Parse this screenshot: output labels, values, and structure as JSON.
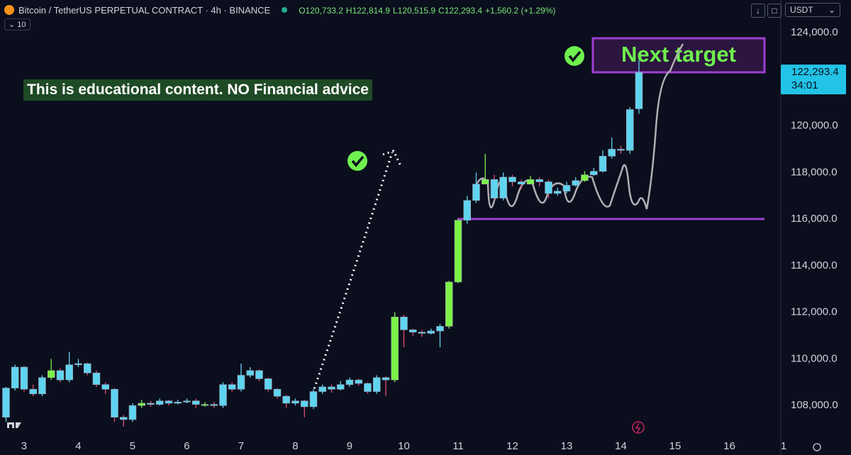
{
  "chart_data": {
    "type": "candlestick",
    "title": "Bitcoin / TetherUS PERPETUAL CONTRACT · 4h · BINANCE",
    "legend_values": [
      "O120,733.2",
      "H122,814.9",
      "L120,515.9",
      "C122,293.4",
      "+1,560.2 (+1.29%)"
    ],
    "indicator_badge": "10",
    "currency": "USDT",
    "annotations": [
      "This is educational content. NO Financial advice",
      "Next target"
    ],
    "last_price": {
      "value": 122293.4,
      "label": "122,293.4"
    },
    "countdown": "34:01",
    "grid": false,
    "xlim": [
      2.556,
      17
    ],
    "ylim": [
      106700,
      125400
    ],
    "xticks": [
      3,
      4,
      5,
      6,
      7,
      8,
      9,
      10,
      11,
      12,
      13,
      14,
      15,
      16,
      {
        "value": 17,
        "label": "1"
      }
    ],
    "yticks": [
      {
        "value": 108000,
        "label": "108,000.0"
      },
      {
        "value": 110000,
        "label": "110,000.0"
      },
      {
        "value": 112000,
        "label": "112,000.0"
      },
      {
        "value": 114000,
        "label": "114,000.0"
      },
      {
        "value": 116000,
        "label": "116,000.0"
      },
      {
        "value": 118000,
        "label": "118,000.0"
      },
      {
        "value": 120000,
        "label": "120,000.0"
      },
      {
        "value": 124000,
        "label": "124,000.0"
      }
    ],
    "x": [
      2.667,
      2.833,
      3,
      3.167,
      3.333,
      3.5,
      3.667,
      3.833,
      4,
      4.167,
      4.333,
      4.5,
      4.667,
      4.833,
      5,
      5.167,
      5.333,
      5.5,
      5.667,
      5.833,
      6,
      6.167,
      6.333,
      6.5,
      6.667,
      6.833,
      7,
      7.167,
      7.333,
      7.5,
      7.667,
      7.833,
      8,
      8.167,
      8.333,
      8.5,
      8.667,
      8.833,
      9,
      9.167,
      9.333,
      9.5,
      9.667,
      9.833,
      10,
      10.167,
      10.333,
      10.5,
      10.667,
      10.833,
      11,
      11.167,
      11.333,
      11.5,
      11.667,
      11.833,
      12,
      12.167,
      12.333,
      12.5,
      12.667,
      12.833,
      13,
      13.167,
      13.333,
      13.5,
      13.667,
      13.833,
      14,
      14.167,
      14.333
    ],
    "open": [
      107500,
      108750,
      109650,
      108700,
      108500,
      109200,
      109500,
      109100,
      109750,
      109800,
      109400,
      108900,
      108700,
      107500,
      107400,
      108000,
      108100,
      108050,
      108200,
      108100,
      108150,
      108200,
      108050,
      108050,
      108000,
      108900,
      108700,
      109300,
      109500,
      109150,
      108700,
      108400,
      108100,
      108200,
      107950,
      108600,
      108800,
      108700,
      108900,
      109100,
      108950,
      108600,
      109200,
      109100,
      111800,
      111250,
      111150,
      111100,
      111200,
      111400,
      113300,
      115950,
      116800,
      117500,
      117700,
      116900,
      117800,
      117600,
      117500,
      117700,
      117600,
      117100,
      117200,
      117450,
      117650,
      117900,
      118050,
      118700,
      119000,
      118950,
      120733.2
    ],
    "high": [
      108800,
      109750,
      109700,
      108900,
      109300,
      110000,
      109600,
      110300,
      110000,
      109850,
      109500,
      109000,
      108750,
      107600,
      108100,
      108250,
      108200,
      108300,
      108250,
      108250,
      108300,
      108300,
      108150,
      108150,
      109000,
      109000,
      109800,
      109650,
      109550,
      109200,
      108750,
      108450,
      108300,
      108250,
      108700,
      108900,
      108900,
      109050,
      109200,
      109150,
      109000,
      109300,
      109250,
      112000,
      111900,
      111300,
      111250,
      111300,
      111500,
      113350,
      116000,
      117000,
      118000,
      118800,
      117900,
      118000,
      117900,
      117700,
      117850,
      117800,
      117700,
      117350,
      117600,
      117800,
      118050,
      118200,
      118950,
      119500,
      119150,
      120800,
      122814.9
    ],
    "low": [
      107300,
      108650,
      108600,
      108400,
      108400,
      109100,
      109000,
      109000,
      109650,
      109300,
      108800,
      108500,
      107300,
      107100,
      107300,
      107900,
      107950,
      108000,
      108000,
      108050,
      108100,
      107900,
      107950,
      107900,
      107900,
      108600,
      108600,
      109200,
      109050,
      108600,
      108300,
      107900,
      108000,
      107500,
      107850,
      108500,
      108550,
      108650,
      108800,
      108850,
      108500,
      108500,
      108400,
      109000,
      110500,
      111000,
      110950,
      111050,
      110500,
      111300,
      113250,
      115800,
      116700,
      117500,
      116800,
      116800,
      117400,
      117300,
      117500,
      117400,
      116900,
      117000,
      117100,
      117400,
      117600,
      117850,
      118000,
      118600,
      118800,
      118800,
      120515.9
    ],
    "close": [
      108750,
      109650,
      108700,
      108500,
      109200,
      109500,
      109100,
      109750,
      109800,
      109400,
      108900,
      108700,
      107500,
      107400,
      108000,
      108100,
      108050,
      108200,
      108100,
      108150,
      108200,
      108050,
      108050,
      108000,
      108900,
      108700,
      109300,
      109500,
      109150,
      108700,
      108400,
      108100,
      108200,
      107950,
      108600,
      108800,
      108700,
      108900,
      109100,
      108950,
      108600,
      109200,
      109100,
      111800,
      111250,
      111150,
      111100,
      111200,
      111400,
      113300,
      115950,
      116800,
      117500,
      117700,
      116900,
      117800,
      117600,
      117500,
      117700,
      117600,
      117100,
      117200,
      117450,
      117650,
      117900,
      118050,
      118700,
      119000,
      118950,
      120700,
      122293.4
    ],
    "colors": [
      "#5fd4ef",
      "#5fd4ef",
      "#5fd4ef",
      "#5fd4ef",
      "#5fd4ef",
      "#7df246",
      "#5fd4ef",
      "#5fd4ef",
      "#5fd4ef",
      "#5fd4ef",
      "#5fd4ef",
      "#5fd4ef",
      "#5fd4ef",
      "#5fd4ef",
      "#5fd4ef",
      "#7df246",
      "#5fd4ef",
      "#5fd4ef",
      "#5fd4ef",
      "#5fd4ef",
      "#5fd4ef",
      "#5fd4ef",
      "#7df246",
      "#5fd4ef",
      "#5fd4ef",
      "#5fd4ef",
      "#5fd4ef",
      "#5fd4ef",
      "#5fd4ef",
      "#5fd4ef",
      "#5fd4ef",
      "#5fd4ef",
      "#5fd4ef",
      "#5fd4ef",
      "#5fd4ef",
      "#5fd4ef",
      "#5fd4ef",
      "#5fd4ef",
      "#5fd4ef",
      "#5fd4ef",
      "#5fd4ef",
      "#5fd4ef",
      "#5fd4ef",
      "#7df246",
      "#5fd4ef",
      "#5fd4ef",
      "#5fd4ef",
      "#5fd4ef",
      "#5fd4ef",
      "#7df246",
      "#7df246",
      "#5fd4ef",
      "#5fd4ef",
      "#7df246",
      "#5fd4ef",
      "#5fd4ef",
      "#5fd4ef",
      "#5fd4ef",
      "#7df246",
      "#5fd4ef",
      "#5fd4ef",
      "#5fd4ef",
      "#5fd4ef",
      "#5fd4ef",
      "#7df246",
      "#5fd4ef",
      "#5fd4ef",
      "#5fd4ef",
      "#5fd4ef",
      "#5fd4ef",
      "#5fd4ef"
    ]
  }
}
